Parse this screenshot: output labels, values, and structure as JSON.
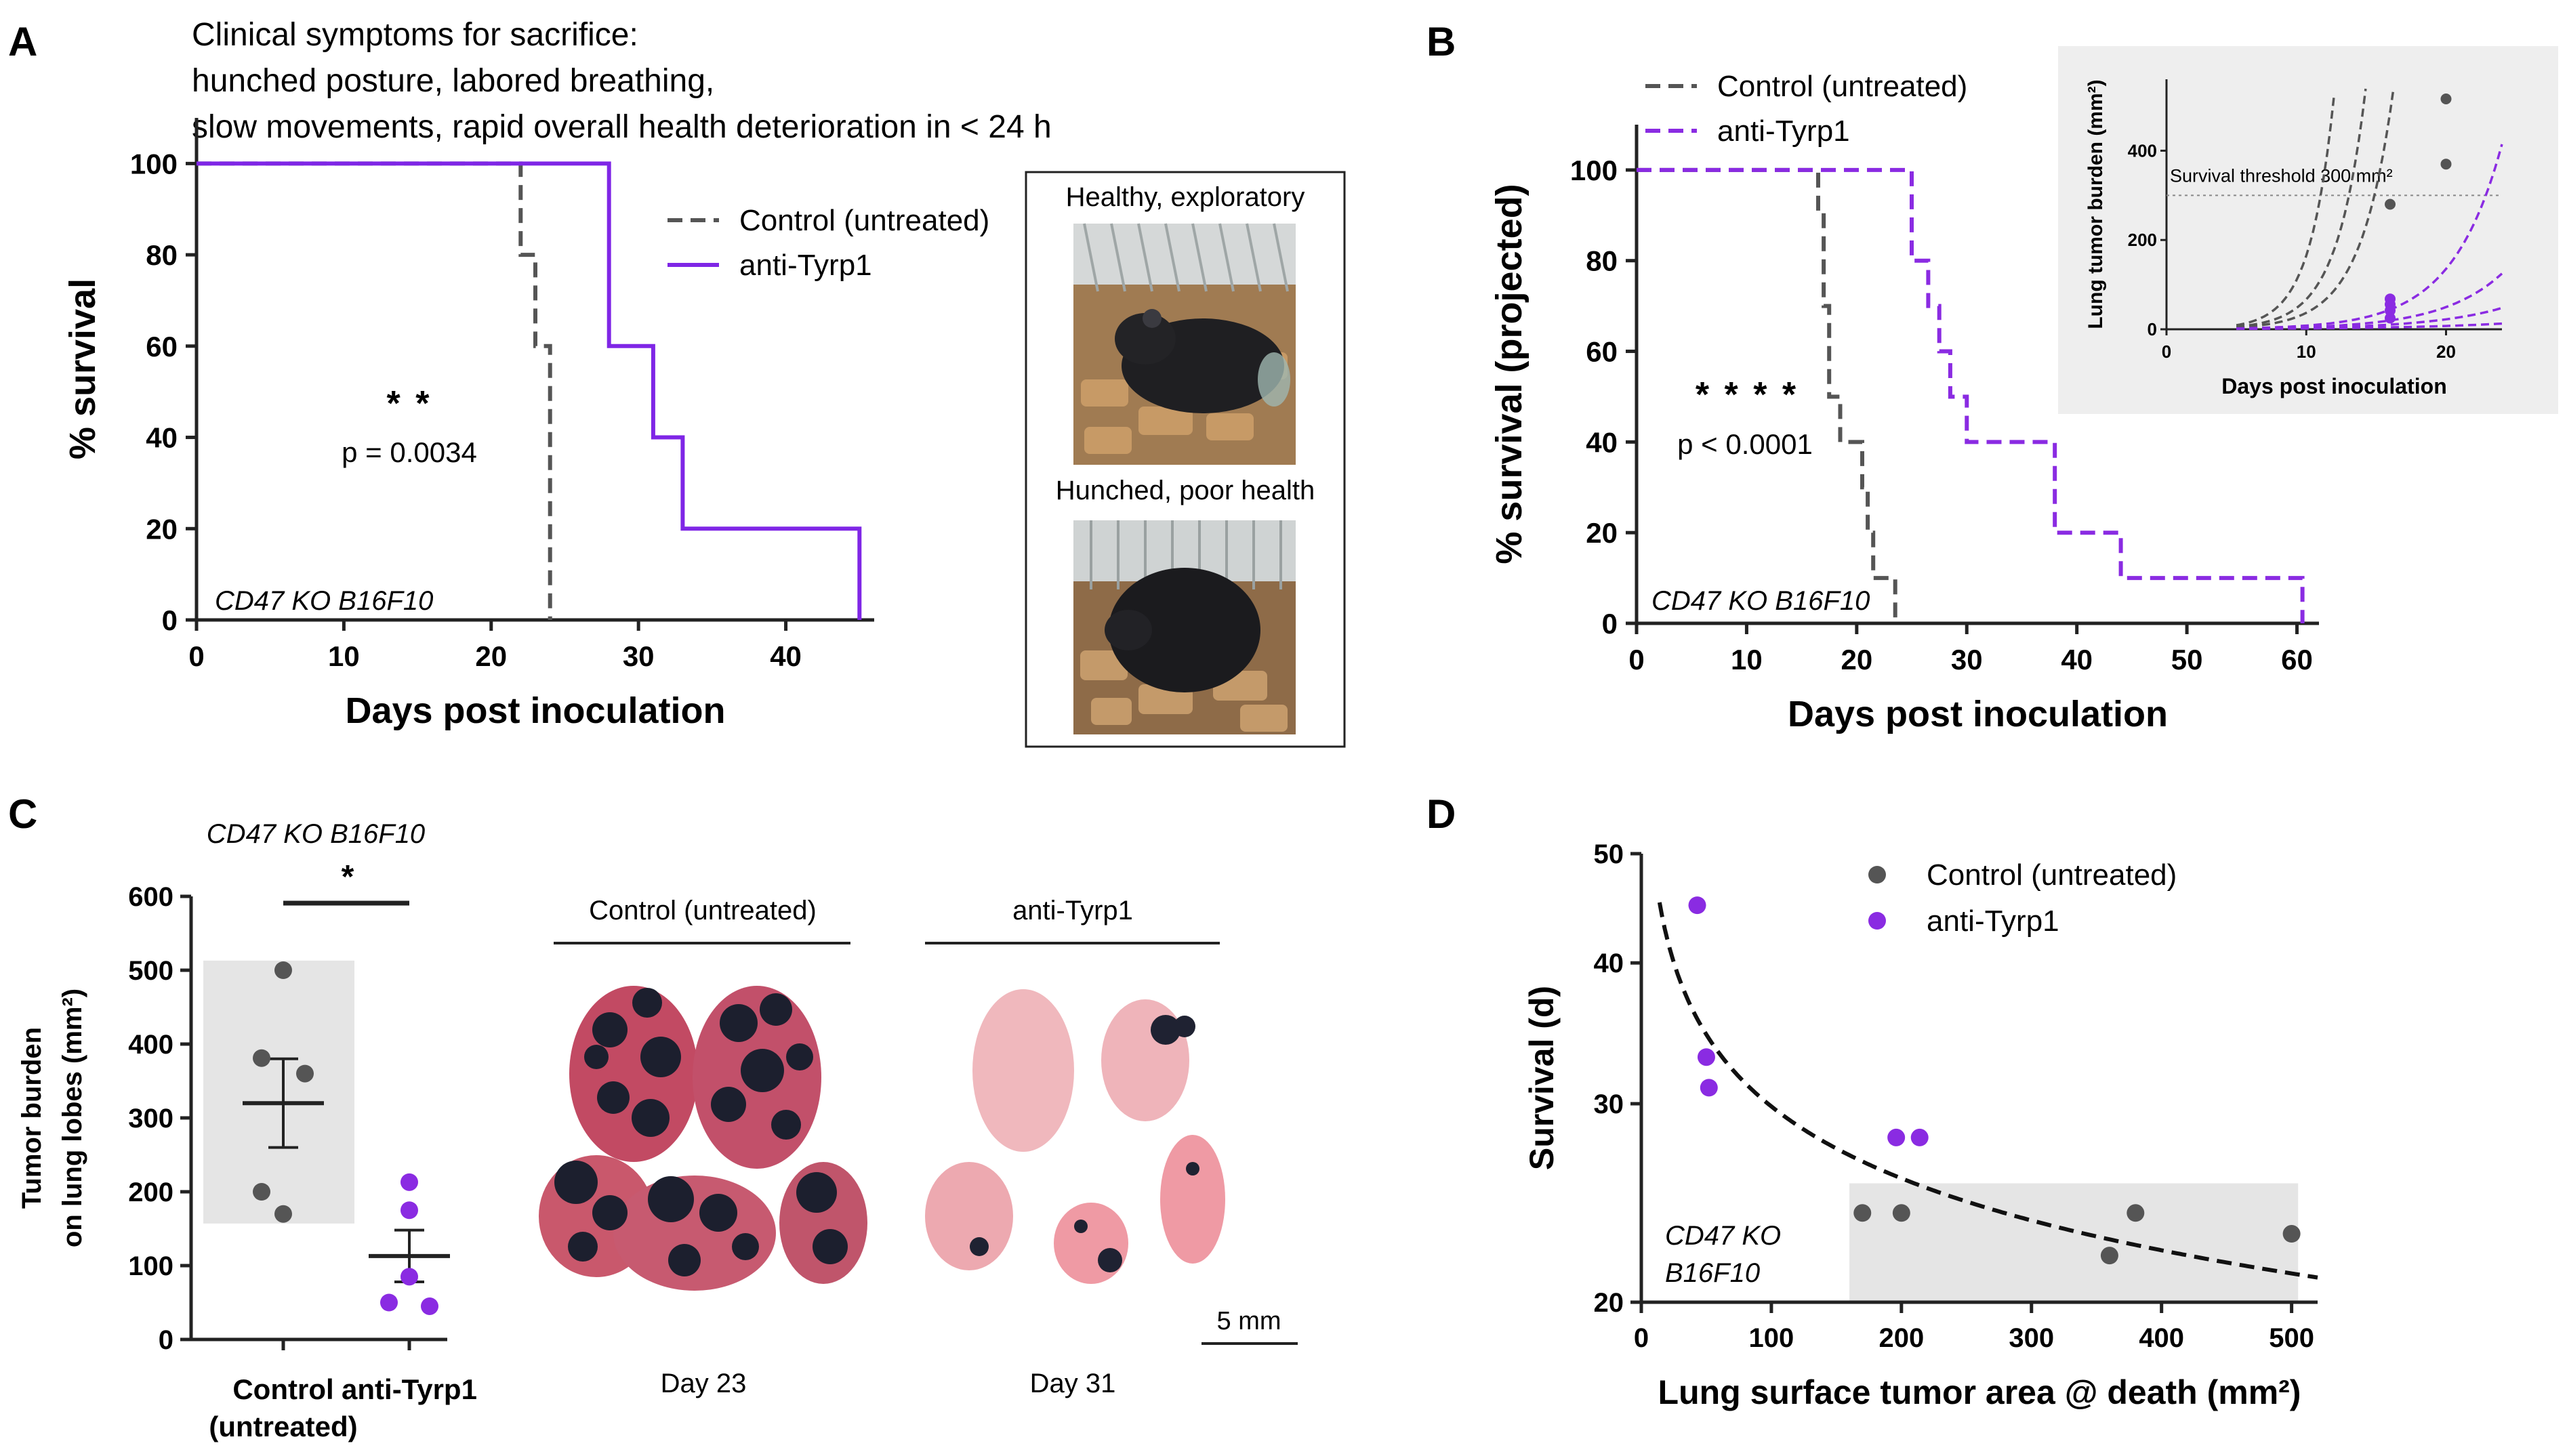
{
  "figure": {
    "panel_labels": [
      "A",
      "B",
      "C",
      "D"
    ],
    "panel_a": {
      "header_lines": [
        "Clinical symptoms for sacrifice:",
        "hunched posture, labored breathing,",
        "slow movements, rapid overall health deterioration in < 24 h"
      ],
      "photo_box": {
        "top_caption": "Healthy, exploratory",
        "bottom_caption": "Hunched, poor health"
      }
    },
    "panel_c_photos": {
      "group_headers": [
        "Control (untreated)",
        "anti-Tyrp1"
      ],
      "day_labels": [
        "Day 23",
        "Day 31"
      ],
      "scale_bar": "5 mm"
    }
  },
  "chart_data": [
    {
      "id": "A",
      "type": "line",
      "subtype": "kaplan-meier",
      "xlabel": "Days post inoculation",
      "ylabel": "% survival",
      "xlim": [
        0,
        46
      ],
      "ylim": [
        0,
        110
      ],
      "xticks": [
        0,
        10,
        20,
        30,
        40
      ],
      "yticks": [
        0,
        20,
        40,
        60,
        80,
        100
      ],
      "series": [
        {
          "name": "Control (untreated)",
          "style": "dashed",
          "color": "#555555",
          "steps": [
            [
              0,
              100
            ],
            [
              22,
              100
            ],
            [
              22,
              80
            ],
            [
              23,
              80
            ],
            [
              23,
              60
            ],
            [
              24,
              60
            ],
            [
              24,
              0
            ]
          ]
        },
        {
          "name": "anti-Tyrp1",
          "style": "solid",
          "color": "#7f26e6",
          "steps": [
            [
              0,
              100
            ],
            [
              28,
              100
            ],
            [
              28,
              60
            ],
            [
              31,
              60
            ],
            [
              31,
              40
            ],
            [
              33,
              40
            ],
            [
              33,
              20
            ],
            [
              45,
              20
            ],
            [
              45,
              0
            ]
          ]
        }
      ],
      "annotation": {
        "stars": "* *",
        "p": "p = 0.0034"
      },
      "cell_line": "CD47 KO B16F10"
    },
    {
      "id": "B",
      "type": "line",
      "subtype": "kaplan-meier",
      "xlabel": "Days post inoculation",
      "ylabel": "% survival (projected)",
      "xlim": [
        0,
        62
      ],
      "ylim": [
        0,
        110
      ],
      "xticks": [
        0,
        10,
        20,
        30,
        40,
        50,
        60
      ],
      "yticks": [
        0,
        20,
        40,
        60,
        80,
        100
      ],
      "series": [
        {
          "name": "Control (untreated)",
          "style": "dashed",
          "color": "#555555",
          "steps": [
            [
              0,
              100
            ],
            [
              16.5,
              100
            ],
            [
              16.5,
              90
            ],
            [
              17,
              90
            ],
            [
              17,
              70
            ],
            [
              17.5,
              70
            ],
            [
              17.5,
              50
            ],
            [
              18.5,
              50
            ],
            [
              18.5,
              40
            ],
            [
              20.5,
              40
            ],
            [
              20.5,
              30
            ],
            [
              21,
              30
            ],
            [
              21,
              20
            ],
            [
              21.5,
              20
            ],
            [
              21.5,
              10
            ],
            [
              23.5,
              10
            ],
            [
              23.5,
              0
            ]
          ]
        },
        {
          "name": "anti-Tyrp1",
          "style": "dashed",
          "color": "#8a2be2",
          "steps": [
            [
              0,
              100
            ],
            [
              25,
              100
            ],
            [
              25,
              80
            ],
            [
              26.5,
              80
            ],
            [
              26.5,
              70
            ],
            [
              27.5,
              70
            ],
            [
              27.5,
              60
            ],
            [
              28.5,
              60
            ],
            [
              28.5,
              50
            ],
            [
              30,
              50
            ],
            [
              30,
              40
            ],
            [
              38,
              40
            ],
            [
              38,
              20
            ],
            [
              44,
              20
            ],
            [
              44,
              10
            ],
            [
              60.5,
              10
            ],
            [
              60.5,
              0
            ]
          ]
        }
      ],
      "annotation": {
        "stars": "* * * *",
        "p": "p < 0.0001"
      },
      "cell_line": "CD47 KO B16F10"
    },
    {
      "id": "B-inset",
      "type": "line",
      "xlabel": "Days post inoculation",
      "ylabel": "Lung tumor burden (mm²)",
      "xlim": [
        0,
        24
      ],
      "ylim": [
        0,
        560
      ],
      "xticks": [
        0,
        10,
        20
      ],
      "yticks": [
        0,
        200,
        400
      ],
      "threshold": {
        "value": 300,
        "label": "Survival threshold 300 mm²"
      },
      "series": [
        {
          "name": "Control curves",
          "color": "#555555",
          "k": [
            0.58,
            0.49,
            0.43
          ],
          "points": [
            [
              16,
              280
            ],
            [
              20,
              516
            ],
            [
              20,
              370
            ]
          ]
        },
        {
          "name": "anti-Tyrp1 curves",
          "color": "#8a2be2",
          "k": [
            0.28,
            0.23,
            0.19,
            0.135
          ],
          "points": [
            [
              16,
              68
            ],
            [
              16,
              56
            ],
            [
              16,
              42
            ],
            [
              16,
              25
            ]
          ]
        }
      ]
    },
    {
      "id": "C",
      "type": "scatter",
      "subtype": "dot-plot-mean-sem",
      "title": "CD47 KO B16F10",
      "ylabel_lines": [
        "Tumor burden",
        "on lung lobes (mm²)"
      ],
      "ylim": [
        0,
        600
      ],
      "yticks": [
        0,
        100,
        200,
        300,
        400,
        500,
        600
      ],
      "categories": [
        "Control (untreated)",
        "anti-Tyrp1"
      ],
      "category_label_lines": [
        [
          "Control",
          "(untreated)"
        ],
        [
          "anti-Tyrp1"
        ]
      ],
      "series": [
        {
          "name": "Control (untreated)",
          "color": "#555555",
          "values": [
            500,
            381,
            360,
            200,
            170
          ],
          "mean": 320,
          "sem": 60
        },
        {
          "name": "anti-Tyrp1",
          "color": "#8a2be2",
          "values": [
            213,
            175,
            85,
            50,
            45
          ],
          "mean": 113,
          "sem": 35
        }
      ],
      "shaded_range": [
        157,
        513
      ],
      "significance": "*"
    },
    {
      "id": "D",
      "type": "scatter",
      "xlabel": "Lung surface tumor area @ death (mm²)",
      "ylabel": "Survival (d)",
      "xlim": [
        0,
        520
      ],
      "ylim": [
        20,
        50
      ],
      "yscale": "log",
      "xticks": [
        0,
        100,
        200,
        300,
        400,
        500
      ],
      "yticks": [
        20,
        30,
        40,
        50
      ],
      "series": [
        {
          "name": "Control (untreated)",
          "color": "#555555",
          "x": [
            170,
            200,
            360,
            380,
            500
          ],
          "y": [
            24,
            24,
            22,
            24,
            23
          ]
        },
        {
          "name": "anti-Tyrp1",
          "color": "#8a2be2",
          "x": [
            43,
            50,
            52,
            196,
            214
          ],
          "y": [
            45,
            33,
            31,
            28,
            28
          ]
        }
      ],
      "fit": {
        "type": "power",
        "a": 79.2,
        "b": -0.212,
        "x_range": [
          14,
          520
        ]
      },
      "shaded_box": {
        "x": [
          160,
          505
        ],
        "y": [
          20,
          25.5
        ]
      },
      "cell_line_lines": [
        "CD47 KO",
        "B16F10"
      ]
    }
  ]
}
